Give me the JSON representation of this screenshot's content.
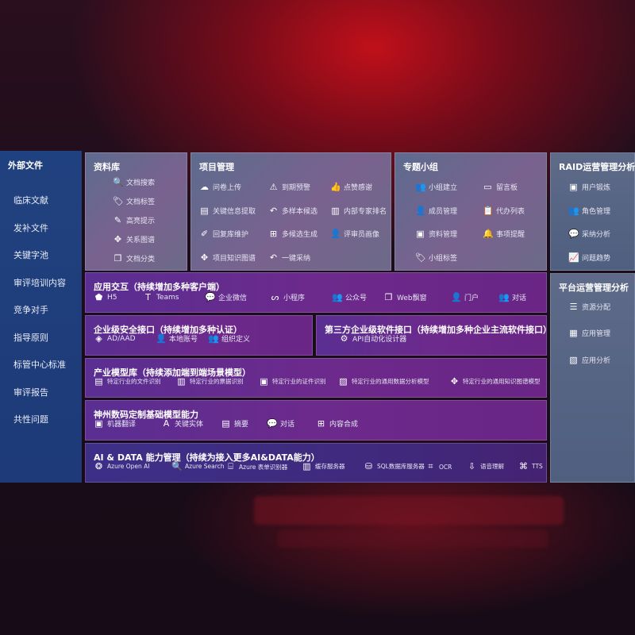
{
  "sidebar": {
    "title": "外部文件",
    "items": [
      "临床文献",
      "发补文件",
      "关键字池",
      "审评培训内容",
      "竞争对手",
      "指导原则",
      "标管中心标准",
      "审评报告",
      "共性问题"
    ]
  },
  "panels": {
    "docs": {
      "title": "资料库",
      "items": [
        {
          "icon": "file-search-icon",
          "glyph": "🔍",
          "label": "文档搜索"
        },
        {
          "icon": "tag-icon",
          "glyph": "🏷",
          "label": "文档标签"
        },
        {
          "icon": "pen-icon",
          "glyph": "✎",
          "label": "高亮提示"
        },
        {
          "icon": "graph-icon",
          "glyph": "✥",
          "label": "关系图谱"
        },
        {
          "icon": "file-classify-icon",
          "glyph": "❐",
          "label": "文档分类"
        }
      ]
    },
    "project": {
      "title": "项目管理",
      "items": [
        {
          "icon": "cloud-upload-icon",
          "glyph": "☁",
          "label": "问卷上传"
        },
        {
          "icon": "alarm-icon",
          "glyph": "⚠",
          "label": "到期预警"
        },
        {
          "icon": "thumbs-up-icon",
          "glyph": "👍",
          "label": "点赞感谢"
        },
        {
          "icon": "extract-icon",
          "glyph": "▤",
          "label": "关键信息提取"
        },
        {
          "icon": "reply-icon",
          "glyph": "↶",
          "label": "多样本候选"
        },
        {
          "icon": "ranking-icon",
          "glyph": "▥",
          "label": "内部专家排名"
        },
        {
          "icon": "edit-icon",
          "glyph": "✐",
          "label": "回复库维护"
        },
        {
          "icon": "puzzle-icon",
          "glyph": "⊞",
          "label": "多候选生成"
        },
        {
          "icon": "user-icon",
          "glyph": "👤",
          "label": "评审员画像"
        },
        {
          "icon": "knowledge-graph-icon",
          "glyph": "✥",
          "label": "项目知识图谱"
        },
        {
          "icon": "adopt-icon",
          "glyph": "↶",
          "label": "一键采纳"
        }
      ]
    },
    "group": {
      "title": "专题小组",
      "items": [
        {
          "icon": "group-icon",
          "glyph": "👥",
          "label": "小组建立"
        },
        {
          "icon": "bbs-icon",
          "glyph": "▭",
          "label": "留言板"
        },
        {
          "icon": "member-icon",
          "glyph": "👤",
          "label": "成员管理"
        },
        {
          "icon": "clipboard-icon",
          "glyph": "📋",
          "label": "代办列表"
        },
        {
          "icon": "folder-icon",
          "glyph": "▣",
          "label": "资料管理"
        },
        {
          "icon": "bell-icon",
          "glyph": "🔔",
          "label": "事项提醒"
        },
        {
          "icon": "tag-icon",
          "glyph": "🏷",
          "label": "小组标签"
        }
      ]
    },
    "raid": {
      "title": "RAID运营管理分析",
      "items": [
        {
          "icon": "id-card-icon",
          "glyph": "▣",
          "label": "用户锻炼"
        },
        {
          "icon": "roles-icon",
          "glyph": "👥",
          "label": "角色管理"
        },
        {
          "icon": "qa-icon",
          "glyph": "💬",
          "label": "采纳分析"
        },
        {
          "icon": "trend-icon",
          "glyph": "📈",
          "label": "问题趋势"
        }
      ]
    },
    "platform": {
      "title": "平台运营管理分析",
      "items": [
        {
          "icon": "checklist-icon",
          "glyph": "☰",
          "label": "资源分配"
        },
        {
          "icon": "apps-icon",
          "glyph": "▦",
          "label": "应用管理"
        },
        {
          "icon": "analysis-icon",
          "glyph": "▧",
          "label": "应用分析"
        }
      ]
    },
    "interaction": {
      "title": "应用交互（持续增加多种客户端）",
      "items": [
        {
          "icon": "html5-icon",
          "glyph": "⬟",
          "label": "H5"
        },
        {
          "icon": "teams-icon",
          "glyph": "T",
          "label": "Teams"
        },
        {
          "icon": "wechat-work-icon",
          "glyph": "💬",
          "label": "企业微信"
        },
        {
          "icon": "mini-program-icon",
          "glyph": "ᔕ",
          "label": "小程序"
        },
        {
          "icon": "official-account-icon",
          "glyph": "👥",
          "label": "公众号"
        },
        {
          "icon": "web-window-icon",
          "glyph": "❐",
          "label": "Web飘窗"
        },
        {
          "icon": "portal-icon",
          "glyph": "👤",
          "label": "门户"
        },
        {
          "icon": "chat-icon",
          "glyph": "👥",
          "label": "对话"
        }
      ]
    },
    "security": {
      "title": "企业级安全接口（持续增加多种认证）",
      "items": [
        {
          "icon": "ad-icon",
          "glyph": "◈",
          "label": "AD/AAD"
        },
        {
          "icon": "local-account-icon",
          "glyph": "👤",
          "label": "本地账号"
        },
        {
          "icon": "org-icon",
          "glyph": "👥",
          "label": "组织定义"
        }
      ]
    },
    "thirdparty": {
      "title": "第三方企业级软件接口（持续增加多种企业主流软件接口）",
      "items": [
        {
          "icon": "gear-icon",
          "glyph": "⚙",
          "label": "API自动化设计器"
        }
      ]
    },
    "industry": {
      "title": "产业模型库（持续添加端到端场景模型）",
      "items": [
        {
          "icon": "file-icon",
          "glyph": "▤",
          "label": "特定行业的文件识别"
        },
        {
          "icon": "receipt-icon",
          "glyph": "▥",
          "label": "特定行业的票据识别"
        },
        {
          "icon": "id-card-icon",
          "glyph": "▣",
          "label": "特定行业的证件识别"
        },
        {
          "icon": "chart-icon",
          "glyph": "▨",
          "label": "特定行业的通用数据分析模型"
        },
        {
          "icon": "knowledge-graph-icon",
          "glyph": "✥",
          "label": "特定行业的通用知识图谱模型"
        }
      ]
    },
    "base": {
      "title": "神州数码定制基础模型能力",
      "items": [
        {
          "icon": "translate-icon",
          "glyph": "▣",
          "label": "机器翻译"
        },
        {
          "icon": "entity-icon",
          "glyph": "A",
          "label": "关键实体"
        },
        {
          "icon": "summary-icon",
          "glyph": "▤",
          "label": "摘要"
        },
        {
          "icon": "chat-icon",
          "glyph": "💬",
          "label": "对话"
        },
        {
          "icon": "compose-icon",
          "glyph": "⊞",
          "label": "内容合成"
        }
      ]
    },
    "aidata": {
      "title": "AI & DATA 能力管理（持续为接入更多AI&DATA能力）",
      "items": [
        {
          "icon": "openai-icon",
          "glyph": "❂",
          "label": "Azure Open AI"
        },
        {
          "icon": "search-icon",
          "glyph": "🔍",
          "label": "Azure Search"
        },
        {
          "icon": "form-recognizer-icon",
          "glyph": "⌸",
          "label": "Azure 表单识别器"
        },
        {
          "icon": "cache-server-icon",
          "glyph": "▥",
          "label": "缓存服务器"
        },
        {
          "icon": "sql-icon",
          "glyph": "⛁",
          "label": "SQL数据库服务器"
        },
        {
          "icon": "ocr-icon",
          "glyph": "⌗",
          "label": "OCR"
        },
        {
          "icon": "speech-icon",
          "glyph": "⇩",
          "label": "语音理解"
        },
        {
          "icon": "tts-icon",
          "glyph": "⌘",
          "label": "TTS"
        }
      ]
    }
  }
}
